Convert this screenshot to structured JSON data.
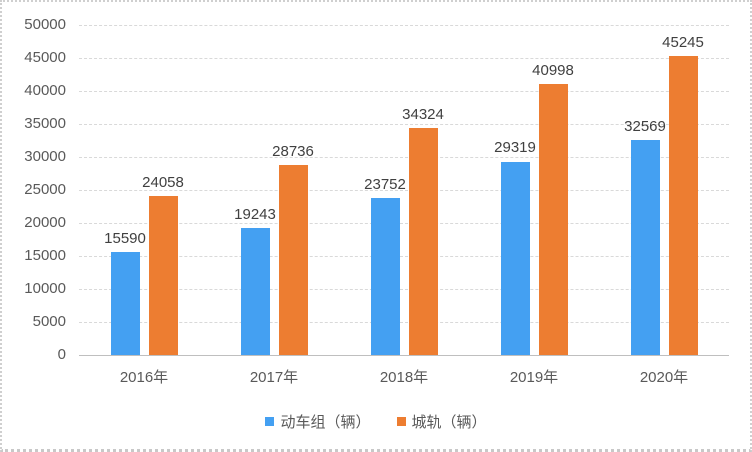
{
  "chart_data": {
    "type": "bar",
    "categories": [
      "2016年",
      "2017年",
      "2018年",
      "2019年",
      "2020年"
    ],
    "series": [
      {
        "name": "动车组（辆）",
        "color": "#44A0F2",
        "values": [
          15590,
          19243,
          23752,
          29319,
          32569
        ]
      },
      {
        "name": "城轨（辆）",
        "color": "#ED7D31",
        "values": [
          24058,
          28736,
          34324,
          40998,
          45245
        ]
      }
    ],
    "title": "",
    "xlabel": "",
    "ylabel": "",
    "ylim": [
      0,
      50000
    ],
    "yticks": [
      0,
      5000,
      10000,
      15000,
      20000,
      25000,
      30000,
      35000,
      40000,
      45000,
      50000
    ],
    "grid": "horizontal",
    "data_labels": true,
    "legend_position": "bottom"
  }
}
